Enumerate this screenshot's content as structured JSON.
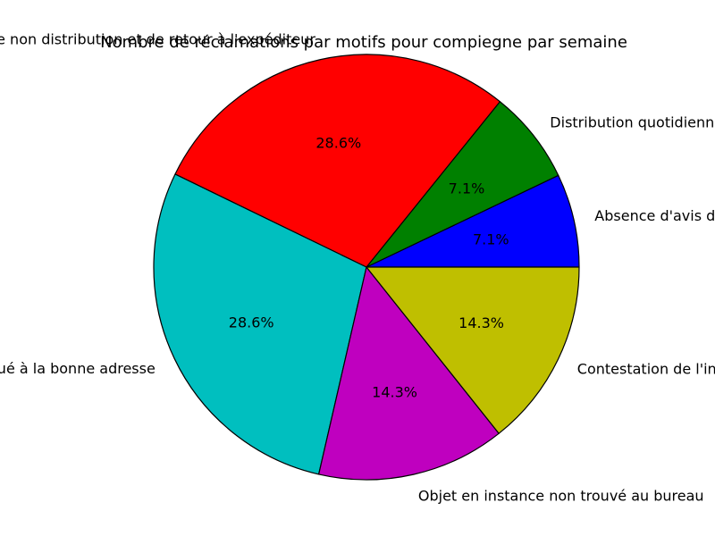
{
  "chart_data": {
    "type": "pie",
    "title": "Nombre de réclamations par motifs pour compiegne par semaine",
    "labels": [
      "Absence d'avis de passage",
      "Distribution quotidienne",
      "Instance non distribution et de retour à l'expéditeur",
      "Objet non distribué à la bonne adresse",
      "Objet en instance non trouvé au bureau",
      "Contestation de l'indemnisation"
    ],
    "values": [
      7.1,
      7.1,
      28.6,
      28.6,
      14.3,
      14.3
    ],
    "percent_labels": [
      "7.1%",
      "7.1%",
      "28.6%",
      "28.6%",
      "14.3%",
      "14.3%"
    ],
    "colors": [
      "#0000ff",
      "#008000",
      "#ff0000",
      "#00bfbf",
      "#bf00bf",
      "#bfbf00"
    ],
    "start_angle_deg": 0,
    "direction": "counterclockwise",
    "legend": "none"
  }
}
